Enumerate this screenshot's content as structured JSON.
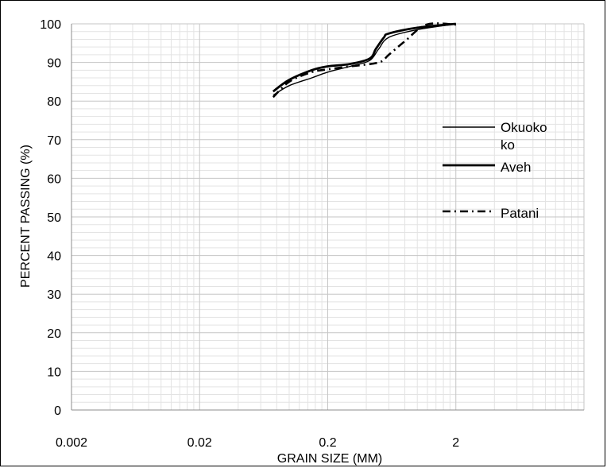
{
  "chart_data": {
    "type": "line",
    "xlabel": "GRAIN SIZE (MM)",
    "ylabel": "PERCENT PASSING (%)",
    "x_scale": "log",
    "xlim": [
      0.002,
      20
    ],
    "ylim": [
      0,
      100
    ],
    "x_ticks": [
      {
        "value": 0.002,
        "label": "0.002"
      },
      {
        "value": 0.02,
        "label": "0.02"
      },
      {
        "value": 0.2,
        "label": "0.2"
      },
      {
        "value": 2,
        "label": "2"
      }
    ],
    "y_ticks": [
      0,
      10,
      20,
      30,
      40,
      50,
      60,
      70,
      80,
      90,
      100
    ],
    "grid": true,
    "legend_position": "right",
    "series": [
      {
        "name": "Okuoko ko",
        "legend_lines": [
          "Okuoko",
          "ko"
        ],
        "style": "thin",
        "x": [
          0.075,
          0.1,
          0.15,
          0.2,
          0.3,
          0.425,
          0.5,
          0.6,
          1.0,
          2.0
        ],
        "y": [
          81.5,
          84.0,
          86.0,
          87.5,
          89.0,
          90.5,
          93.5,
          96.5,
          98.5,
          100
        ]
      },
      {
        "name": "Aveh",
        "legend_lines": [
          "Aveh"
        ],
        "style": "thick",
        "x": [
          0.075,
          0.1,
          0.15,
          0.2,
          0.3,
          0.425,
          0.475,
          0.55,
          0.6,
          1.0,
          2.0
        ],
        "y": [
          82.5,
          85.5,
          88.0,
          89.0,
          89.6,
          91.0,
          93.5,
          96.5,
          97.5,
          99.0,
          100
        ]
      },
      {
        "name": "Patani",
        "legend_lines": [
          "Patani"
        ],
        "style": "dashdot",
        "x": [
          0.075,
          0.1,
          0.15,
          0.2,
          0.3,
          0.5,
          0.6,
          0.8,
          1.18,
          2.0
        ],
        "y": [
          81.0,
          85.0,
          87.5,
          88.2,
          89.0,
          90.0,
          92.0,
          95.5,
          99.8,
          99.8
        ]
      }
    ]
  }
}
